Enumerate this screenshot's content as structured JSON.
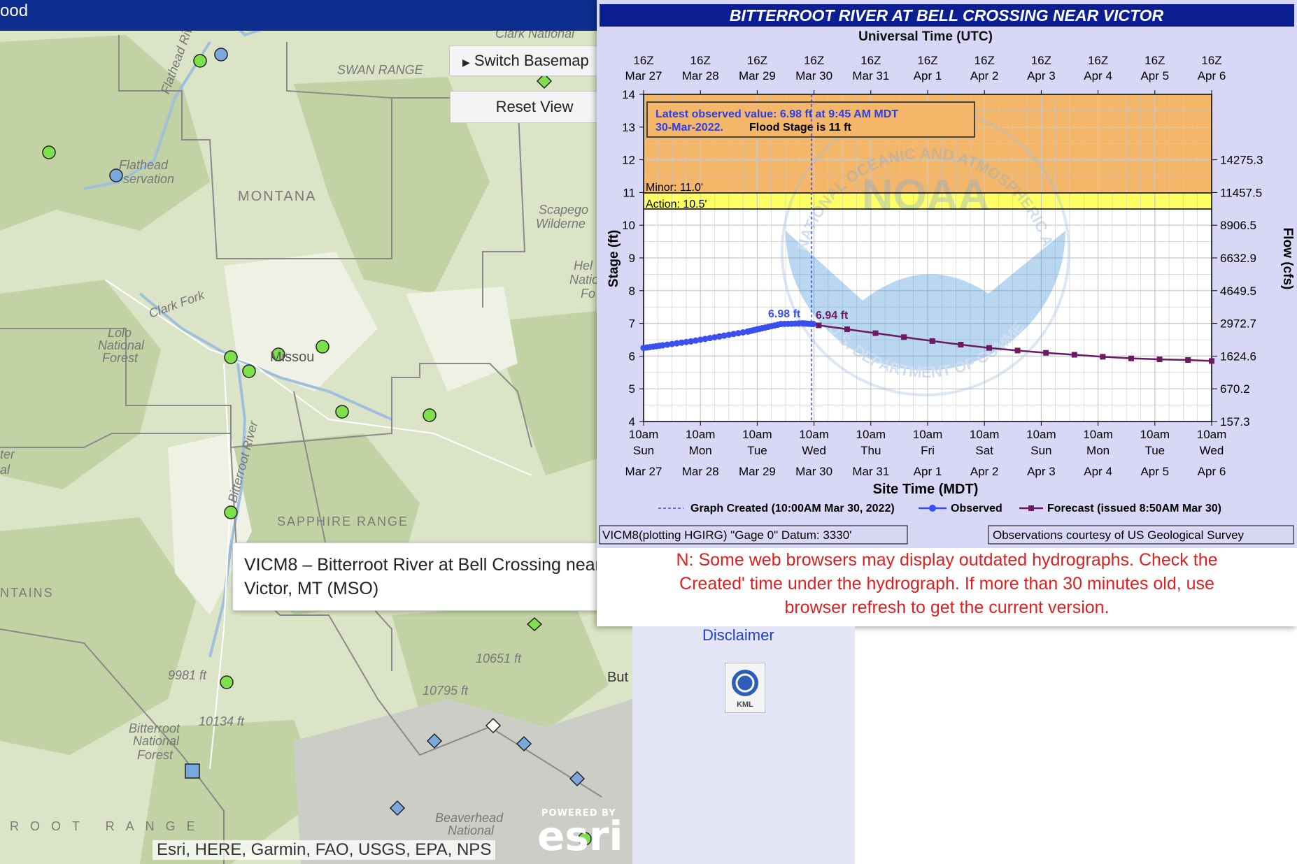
{
  "app": {
    "title_fragment": "ood"
  },
  "map": {
    "switch_basemap_label": "Switch Basemap",
    "reset_view_label": "Reset View",
    "labels": [
      {
        "text": "Clark National",
        "cls": ""
      },
      {
        "text": "SWAN RANGE",
        "cls": ""
      },
      {
        "text": "Flathead River",
        "cls": ""
      },
      {
        "text": "Flathead",
        "cls": ""
      },
      {
        "text": "servation",
        "cls": ""
      },
      {
        "text": "MONTANA",
        "cls": "big"
      },
      {
        "text": "Scapego",
        "cls": ""
      },
      {
        "text": "Wilderne",
        "cls": ""
      },
      {
        "text": "Hel",
        "cls": ""
      },
      {
        "text": "Natio",
        "cls": ""
      },
      {
        "text": "Fo",
        "cls": ""
      },
      {
        "text": "Clark Fork",
        "cls": ""
      },
      {
        "text": "Lolo",
        "cls": ""
      },
      {
        "text": "National",
        "cls": ""
      },
      {
        "text": "Forest",
        "cls": ""
      },
      {
        "text": "Missou",
        "cls": ""
      },
      {
        "text": "Bitterroot River",
        "cls": ""
      },
      {
        "text": "SAPPHIRE RANGE",
        "cls": "big"
      },
      {
        "text": "NTAINS",
        "cls": "big"
      },
      {
        "text": "ter",
        "cls": ""
      },
      {
        "text": "al",
        "cls": ""
      },
      {
        "text": "9981 ft",
        "cls": ""
      },
      {
        "text": "10134 ft",
        "cls": ""
      },
      {
        "text": "10651 ft",
        "cls": ""
      },
      {
        "text": "10795 ft",
        "cls": ""
      },
      {
        "text": "Bitterroot",
        "cls": ""
      },
      {
        "text": "National",
        "cls": ""
      },
      {
        "text": "Forest",
        "cls": ""
      },
      {
        "text": "ROOT  RANGE",
        "cls": "big"
      },
      {
        "text": "Beaverhead",
        "cls": ""
      },
      {
        "text": "National",
        "cls": ""
      },
      {
        "text": "But",
        "cls": ""
      }
    ],
    "attribution": "Esri, HERE, Garmin, FAO, USGS, EPA, NPS",
    "esri_powered": "POWERED BY",
    "esri_logo": "esri",
    "tooltip_line1": "VICM8 – Bitterroot River at Bell Crossing near",
    "tooltip_line2": "Victor, MT (MSO)",
    "colors": {
      "green_gauge": "#7ee04a",
      "blue_gauge": "#7aa8dc",
      "header": "#0d2e8f"
    }
  },
  "hydrograph": {
    "title": "BITTERROOT RIVER AT BELL CROSSING NEAR VICTOR",
    "top_axis_title": "Universal Time (UTC)",
    "top_ticks": [
      {
        "h": "16Z",
        "d": "Mar 27"
      },
      {
        "h": "16Z",
        "d": "Mar 28"
      },
      {
        "h": "16Z",
        "d": "Mar 29"
      },
      {
        "h": "16Z",
        "d": "Mar 30"
      },
      {
        "h": "16Z",
        "d": "Mar 31"
      },
      {
        "h": "16Z",
        "d": "Apr 1"
      },
      {
        "h": "16Z",
        "d": "Apr 2"
      },
      {
        "h": "16Z",
        "d": "Apr 3"
      },
      {
        "h": "16Z",
        "d": "Apr 4"
      },
      {
        "h": "16Z",
        "d": "Apr 5"
      },
      {
        "h": "16Z",
        "d": "Apr 6"
      }
    ],
    "bottom_ticks": [
      {
        "t": "10am",
        "w": "Sun",
        "d": "Mar 27"
      },
      {
        "t": "10am",
        "w": "Mon",
        "d": "Mar 28"
      },
      {
        "t": "10am",
        "w": "Tue",
        "d": "Mar 29"
      },
      {
        "t": "10am",
        "w": "Wed",
        "d": "Mar 30"
      },
      {
        "t": "10am",
        "w": "Thu",
        "d": "Mar 31"
      },
      {
        "t": "10am",
        "w": "Fri",
        "d": "Apr 1"
      },
      {
        "t": "10am",
        "w": "Sat",
        "d": "Apr 2"
      },
      {
        "t": "10am",
        "w": "Sun",
        "d": "Apr 3"
      },
      {
        "t": "10am",
        "w": "Mon",
        "d": "Apr 4"
      },
      {
        "t": "10am",
        "w": "Tue",
        "d": "Apr 5"
      },
      {
        "t": "10am",
        "w": "Wed",
        "d": "Apr 6"
      }
    ],
    "bottom_axis_title": "Site Time (MDT)",
    "y_left_title": "Stage (ft)",
    "y_right_title": "Flow (cfs)",
    "y_left_ticks": [
      "4",
      "5",
      "6",
      "7",
      "8",
      "9",
      "10",
      "11",
      "12",
      "13",
      "14"
    ],
    "y_right_ticks": [
      "157.3",
      "670.2",
      "1624.6",
      "2972.7",
      "4649.5",
      "6632.9",
      "8906.5",
      "11457.5",
      "14275.3"
    ],
    "info_line1": "Latest observed value: 6.98 ft at 9:45 AM MDT",
    "info_line2a": "30-Mar-2022.",
    "info_line2b": "Flood Stage is 11 ft",
    "minor_label": "Minor: 11.0'",
    "action_label": "Action: 10.5'",
    "obs_label": "6.98 ft",
    "fcst_label": "6.94 ft",
    "legend_created": "Graph Created (10:00AM Mar 30, 2022)",
    "legend_observed": "Observed",
    "legend_forecast": "Forecast (issued 8:50AM Mar 30)",
    "datum": "VICM8(plotting HGIRG) \"Gage 0\" Datum: 3330'",
    "courtesy": "Observations courtesy of US Geological Survey",
    "watermark_top": "NATIONAL OCEANIC AND ATMOSPHERIC ADMINISTRATION",
    "watermark_bottom": "U.S. DEPARTMENT OF COMMERCE",
    "watermark_center": "NOAA",
    "colors": {
      "minor": "#f4b76a",
      "action": "#ffff66",
      "observed": "#3a4ff0",
      "forecast": "#6b1a63",
      "title_bg": "#0c1f92"
    }
  },
  "chart_data": {
    "type": "line",
    "title": "BITTERROOT RIVER AT BELL CROSSING NEAR VICTOR",
    "xlabel": "Site Time (MDT)",
    "ylabel": "Stage (ft)",
    "ylim": [
      4,
      14
    ],
    "series": [
      {
        "name": "Observed",
        "x": [
          "Mar 27 10:00",
          "Mar 27 18:00",
          "Mar 28 06:00",
          "Mar 28 18:00",
          "Mar 29 06:00",
          "Mar 29 12:00",
          "Mar 29 20:00",
          "Mar 30 05:00",
          "Mar 30 09:45"
        ],
        "values": [
          6.25,
          6.33,
          6.45,
          6.6,
          6.75,
          6.85,
          6.98,
          7.0,
          6.98
        ]
      },
      {
        "name": "Forecast",
        "x": [
          "Mar 30 12:00",
          "Mar 31 00:00",
          "Mar 31 12:00",
          "Apr 1 00:00",
          "Apr 1 12:00",
          "Apr 2 00:00",
          "Apr 2 12:00",
          "Apr 3 00:00",
          "Apr 3 12:00",
          "Apr 4 00:00",
          "Apr 4 12:00",
          "Apr 5 00:00",
          "Apr 5 12:00",
          "Apr 6 00:00",
          "Apr 6 10:00"
        ],
        "values": [
          6.94,
          6.82,
          6.7,
          6.58,
          6.46,
          6.35,
          6.25,
          6.17,
          6.1,
          6.04,
          5.98,
          5.93,
          5.9,
          5.88,
          5.85
        ]
      }
    ],
    "thresholds": {
      "minor": 11.0,
      "action": 10.5
    },
    "legend": "bottom"
  },
  "warning": {
    "line1": "N: Some web browsers may display outdated hydrographs. Check the",
    "line2": "Created' time under the hydrograph. If more than 30 minutes old, use",
    "line3": "browser refresh to get the current version."
  },
  "lower": {
    "disclaimer": "Disclaimer",
    "kml_label": "KML"
  }
}
